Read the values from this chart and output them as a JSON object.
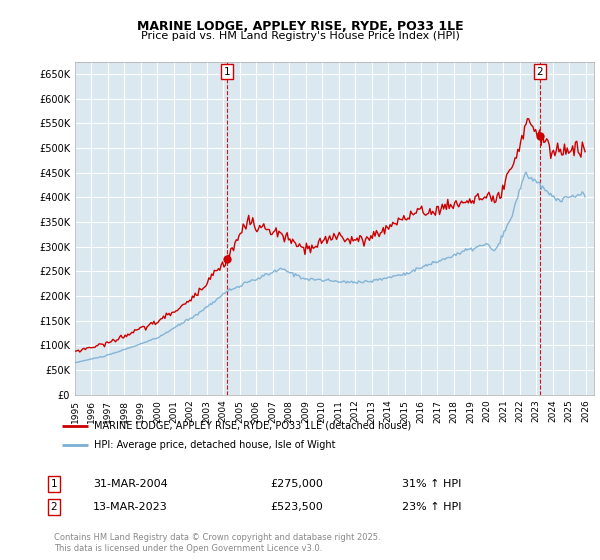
{
  "title": "MARINE LODGE, APPLEY RISE, RYDE, PO33 1LE",
  "subtitle": "Price paid vs. HM Land Registry's House Price Index (HPI)",
  "ylim": [
    0,
    675000
  ],
  "xlim_start": 1995.0,
  "xlim_end": 2026.5,
  "red_color": "#cc0000",
  "blue_color": "#7aafd4",
  "grid_color": "#c8d8e8",
  "plot_bg_color": "#dce8f0",
  "background_color": "#ffffff",
  "sale1_year": 2004.24,
  "sale1_price": 275000,
  "sale1_label": "1",
  "sale2_year": 2023.2,
  "sale2_price": 523500,
  "sale2_label": "2",
  "legend_line1": "MARINE LODGE, APPLEY RISE, RYDE, PO33 1LE (detached house)",
  "legend_line2": "HPI: Average price, detached house, Isle of Wight",
  "copyright": "Contains HM Land Registry data © Crown copyright and database right 2025.\nThis data is licensed under the Open Government Licence v3.0."
}
